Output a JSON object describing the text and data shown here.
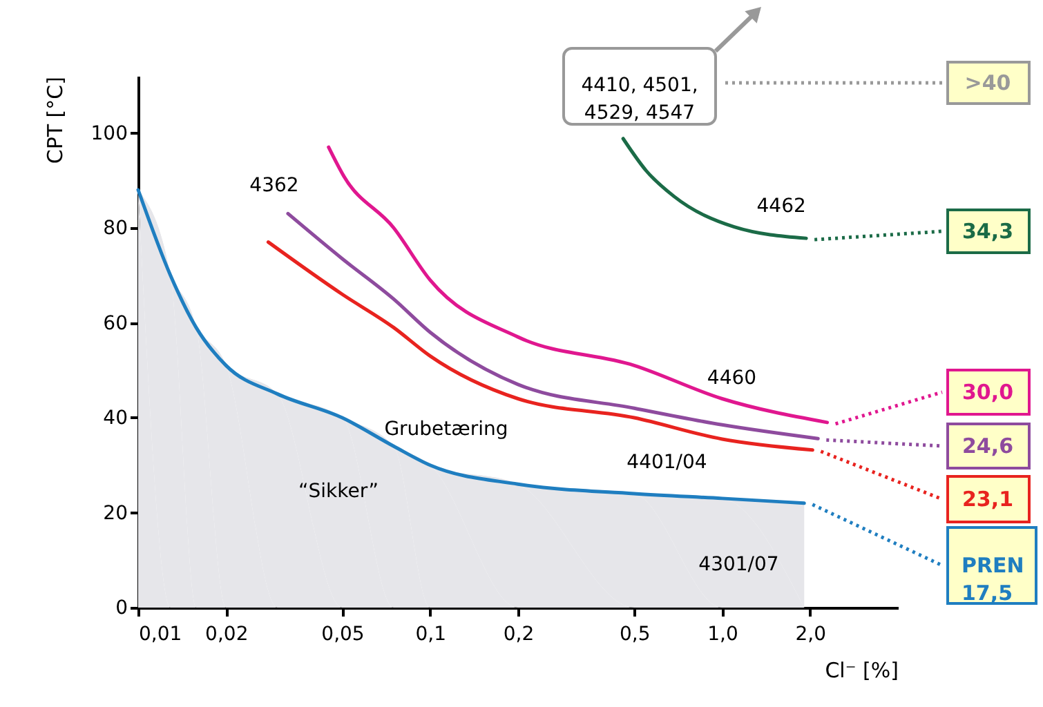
{
  "chart_data": {
    "type": "line",
    "xlabel": "Cl⁻ [%]",
    "ylabel": "CPT [°C]",
    "log": "x",
    "xlim": [
      0.01,
      4.0
    ],
    "xticks": [
      {
        "value": 0.01,
        "label": "0,01"
      },
      {
        "value": 0.02,
        "label": "0,02"
      },
      {
        "value": 0.05,
        "label": "0,05"
      },
      {
        "value": 0.1,
        "label": "0,1"
      },
      {
        "value": 0.2,
        "label": "0,2"
      },
      {
        "value": 0.5,
        "label": "0,5"
      },
      {
        "value": 1.0,
        "label": "1,0"
      },
      {
        "value": 2.0,
        "label": "2,0"
      }
    ],
    "ylim": [
      0,
      112
    ],
    "yticks": [
      0,
      20,
      40,
      60,
      80,
      100
    ],
    "grid": false,
    "legend": false,
    "marker": "none",
    "line_style": "solid",
    "series": [
      {
        "name": "4301/07",
        "type": "area",
        "color": "#1f7ec0",
        "x": [
          0.01,
          0.0129,
          0.0158,
          0.02,
          0.03,
          0.05,
          0.075,
          0.1,
          0.2,
          0.5,
          1.0,
          1.91
        ],
        "values": [
          88,
          70,
          59,
          51,
          45,
          40,
          34,
          30,
          26,
          24,
          23,
          22
        ]
      },
      {
        "name": "4401/04",
        "color": "#e8231f",
        "x": [
          0.0279,
          0.05,
          0.075,
          0.1,
          0.2,
          0.5,
          1.0,
          2.04
        ],
        "values": [
          77,
          66,
          59,
          53,
          44,
          40,
          35.5,
          33.2
        ]
      },
      {
        "name": "4362",
        "color": "#8e4b9e",
        "x": [
          0.0326,
          0.05,
          0.075,
          0.1,
          0.2,
          0.5,
          1.0,
          2.13
        ],
        "values": [
          83,
          73.5,
          65,
          58,
          47,
          42,
          38.5,
          35.6
        ]
      },
      {
        "name": "4460",
        "color": "#e0178f",
        "x": [
          0.0449,
          0.0505,
          0.075,
          0.1,
          0.2,
          0.5,
          1.0,
          2.29
        ],
        "values": [
          97,
          91,
          80,
          69,
          57,
          51,
          44,
          39
        ]
      },
      {
        "name": "4462",
        "color": "#1b6b47",
        "x": [
          0.458,
          0.55,
          0.685,
          1.1,
          1.94
        ],
        "values": [
          98.8,
          92,
          86.6,
          80.2,
          77.8
        ]
      }
    ],
    "annotations": [
      "Grubetæring",
      "“Sikker”",
      "4410, 4501,\n4529, 4547",
      ">40",
      "34,3",
      "30,0",
      "24,6",
      "23,1",
      "PREN\n17,5"
    ]
  }
}
